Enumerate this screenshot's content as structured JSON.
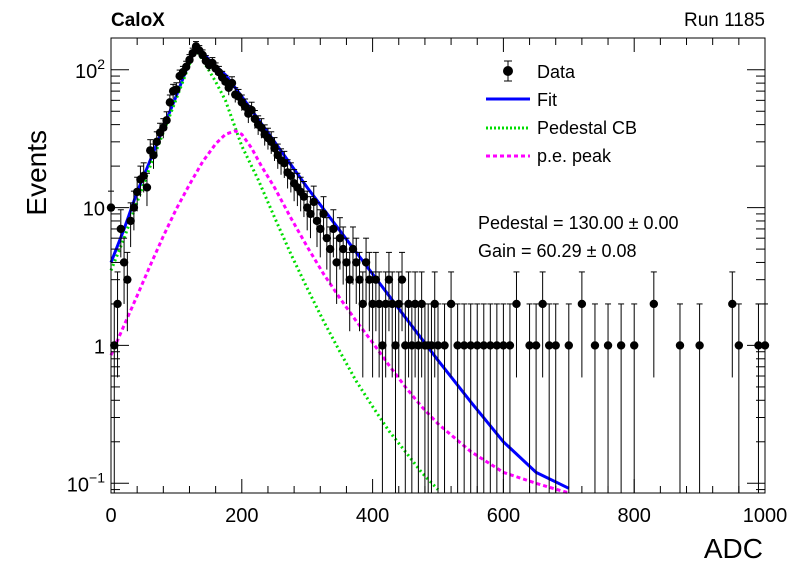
{
  "header": {
    "brand": "CaloX",
    "run": "Run 1185"
  },
  "annotations": {
    "pedestal": "Pedestal = 130.00 ± 0.00",
    "gain": "Gain = 60.29 ± 0.08"
  },
  "colors": {
    "data": "#000000",
    "fit": "#0000ff",
    "pedestal": "#00dd00",
    "pe_peak": "#ff00ff"
  },
  "chart_data": {
    "type": "scatter",
    "xlabel": "ADC",
    "ylabel": "Events",
    "xlim": [
      0,
      1000
    ],
    "ylim": [
      0.085,
      170
    ],
    "yscale": "log",
    "grid": false,
    "legend_position": "top-right",
    "x_ticks": [
      "0",
      "200",
      "400",
      "600",
      "800",
      "1000"
    ],
    "y_ticks": [
      {
        "value": 0.1,
        "label_base": "10",
        "label_exp": "−1"
      },
      {
        "value": 1,
        "label_base": "1",
        "label_exp": ""
      },
      {
        "value": 10,
        "label_base": "10",
        "label_exp": ""
      },
      {
        "value": 100,
        "label_base": "10",
        "label_exp": "2"
      }
    ],
    "series": [
      {
        "name": "Data",
        "style": "points-with-errors",
        "color": "#000000",
        "points": [
          [
            0,
            10
          ],
          [
            5,
            1
          ],
          [
            10,
            2
          ],
          [
            15,
            7
          ],
          [
            20,
            4
          ],
          [
            25,
            3
          ],
          [
            30,
            8
          ],
          [
            35,
            10
          ],
          [
            40,
            13
          ],
          [
            45,
            16
          ],
          [
            50,
            17
          ],
          [
            55,
            14
          ],
          [
            60,
            26
          ],
          [
            65,
            24
          ],
          [
            70,
            30
          ],
          [
            75,
            35
          ],
          [
            80,
            38
          ],
          [
            85,
            43
          ],
          [
            90,
            58
          ],
          [
            95,
            70
          ],
          [
            100,
            72
          ],
          [
            105,
            90
          ],
          [
            110,
            96
          ],
          [
            115,
            105
          ],
          [
            120,
            118
          ],
          [
            125,
            132
          ],
          [
            130,
            148
          ],
          [
            135,
            138
          ],
          [
            140,
            128
          ],
          [
            145,
            116
          ],
          [
            150,
            108
          ],
          [
            155,
            112
          ],
          [
            160,
            102
          ],
          [
            165,
            96
          ],
          [
            170,
            88
          ],
          [
            175,
            82
          ],
          [
            180,
            74
          ],
          [
            185,
            80
          ],
          [
            190,
            66
          ],
          [
            195,
            64
          ],
          [
            200,
            58
          ],
          [
            205,
            54
          ],
          [
            210,
            48
          ],
          [
            215,
            51
          ],
          [
            220,
            44
          ],
          [
            225,
            40
          ],
          [
            230,
            38
          ],
          [
            235,
            34
          ],
          [
            240,
            32
          ],
          [
            245,
            30
          ],
          [
            250,
            27
          ],
          [
            255,
            24
          ],
          [
            260,
            22
          ],
          [
            265,
            21
          ],
          [
            270,
            18
          ],
          [
            275,
            17
          ],
          [
            280,
            15
          ],
          [
            285,
            14
          ],
          [
            290,
            13
          ],
          [
            295,
            12
          ],
          [
            300,
            10
          ],
          [
            305,
            9
          ],
          [
            310,
            11
          ],
          [
            315,
            8
          ],
          [
            320,
            7
          ],
          [
            325,
            9
          ],
          [
            330,
            6
          ],
          [
            335,
            5
          ],
          [
            340,
            7
          ],
          [
            345,
            4
          ],
          [
            350,
            6
          ],
          [
            355,
            5
          ],
          [
            360,
            4
          ],
          [
            365,
            3
          ],
          [
            370,
            5
          ],
          [
            375,
            4
          ],
          [
            380,
            3
          ],
          [
            385,
            2
          ],
          [
            390,
            4
          ],
          [
            395,
            3
          ],
          [
            400,
            2
          ],
          [
            405,
            3
          ],
          [
            410,
            2
          ],
          [
            415,
            1
          ],
          [
            420,
            2
          ],
          [
            425,
            3
          ],
          [
            430,
            2
          ],
          [
            435,
            1
          ],
          [
            440,
            2
          ],
          [
            445,
            3
          ],
          [
            450,
            1
          ],
          [
            455,
            2
          ],
          [
            460,
            1
          ],
          [
            465,
            2
          ],
          [
            470,
            1
          ],
          [
            475,
            2
          ],
          [
            480,
            1
          ],
          [
            485,
            1
          ],
          [
            490,
            1
          ],
          [
            495,
            2
          ],
          [
            500,
            1
          ],
          [
            510,
            1
          ],
          [
            520,
            2
          ],
          [
            530,
            1
          ],
          [
            540,
            1
          ],
          [
            550,
            1
          ],
          [
            560,
            1
          ],
          [
            570,
            1
          ],
          [
            580,
            1
          ],
          [
            590,
            1
          ],
          [
            600,
            1
          ],
          [
            610,
            1
          ],
          [
            620,
            2
          ],
          [
            640,
            1
          ],
          [
            650,
            1
          ],
          [
            660,
            2
          ],
          [
            670,
            1
          ],
          [
            680,
            1
          ],
          [
            700,
            1
          ],
          [
            720,
            2
          ],
          [
            740,
            1
          ],
          [
            760,
            1
          ],
          [
            780,
            1
          ],
          [
            800,
            1
          ],
          [
            830,
            2
          ],
          [
            870,
            1
          ],
          [
            900,
            1
          ],
          [
            950,
            2
          ],
          [
            960,
            1
          ],
          [
            990,
            1
          ],
          [
            1000,
            1
          ]
        ]
      },
      {
        "name": "Fit",
        "style": "line",
        "color": "#0000ff",
        "points": [
          [
            0,
            4
          ],
          [
            20,
            7
          ],
          [
            40,
            13
          ],
          [
            60,
            22
          ],
          [
            80,
            38
          ],
          [
            100,
            65
          ],
          [
            120,
            115
          ],
          [
            132,
            150
          ],
          [
            150,
            118
          ],
          [
            175,
            92
          ],
          [
            200,
            64
          ],
          [
            250,
            30
          ],
          [
            300,
            14
          ],
          [
            350,
            6.8
          ],
          [
            400,
            3.3
          ],
          [
            450,
            1.6
          ],
          [
            500,
            0.78
          ],
          [
            550,
            0.39
          ],
          [
            600,
            0.2
          ],
          [
            650,
            0.12
          ],
          [
            700,
            0.092
          ],
          [
            750,
            0.072
          ]
        ]
      },
      {
        "name": "Pedestal CB",
        "style": "dotted",
        "color": "#00dd00",
        "points": [
          [
            0,
            3.5
          ],
          [
            20,
            6
          ],
          [
            40,
            11
          ],
          [
            60,
            20
          ],
          [
            80,
            35
          ],
          [
            100,
            62
          ],
          [
            120,
            110
          ],
          [
            130,
            140
          ],
          [
            145,
            108
          ],
          [
            160,
            82
          ],
          [
            175,
            60
          ],
          [
            200,
            28
          ],
          [
            225,
            16
          ],
          [
            250,
            8.5
          ],
          [
            275,
            4.6
          ],
          [
            300,
            2.6
          ],
          [
            325,
            1.5
          ],
          [
            350,
            0.9
          ],
          [
            375,
            0.55
          ],
          [
            400,
            0.36
          ],
          [
            425,
            0.24
          ],
          [
            450,
            0.17
          ],
          [
            475,
            0.12
          ],
          [
            500,
            0.09
          ],
          [
            525,
            0.075
          ]
        ]
      },
      {
        "name": "p.e. peak",
        "style": "dotted",
        "color": "#ff00ff",
        "points": [
          [
            0,
            0.85
          ],
          [
            20,
            1.4
          ],
          [
            40,
            2.3
          ],
          [
            60,
            3.8
          ],
          [
            80,
            6.2
          ],
          [
            100,
            9.8
          ],
          [
            120,
            14.7
          ],
          [
            140,
            21.5
          ],
          [
            160,
            29
          ],
          [
            175,
            34
          ],
          [
            190,
            36
          ],
          [
            200,
            34
          ],
          [
            215,
            27
          ],
          [
            230,
            20
          ],
          [
            250,
            14
          ],
          [
            275,
            8.4
          ],
          [
            300,
            5.2
          ],
          [
            325,
            3.3
          ],
          [
            350,
            2.2
          ],
          [
            375,
            1.5
          ],
          [
            400,
            1.05
          ],
          [
            425,
            0.72
          ],
          [
            450,
            0.5
          ],
          [
            475,
            0.36
          ],
          [
            500,
            0.27
          ],
          [
            550,
            0.17
          ],
          [
            600,
            0.12
          ],
          [
            650,
            0.1
          ],
          [
            700,
            0.085
          ]
        ]
      }
    ]
  }
}
